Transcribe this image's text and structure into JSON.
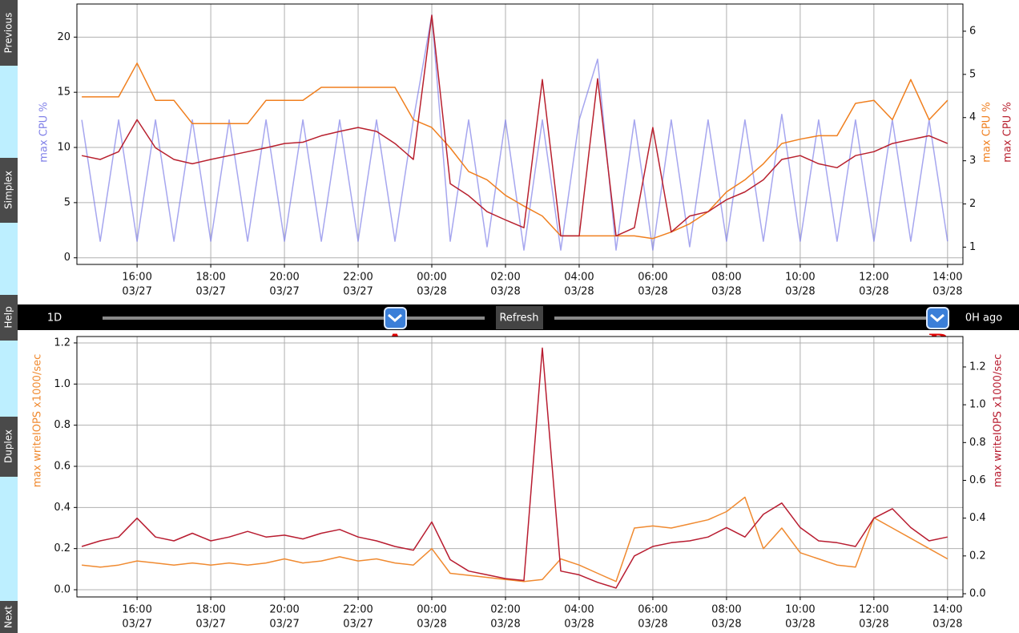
{
  "sidebar": {
    "buttons": [
      "Previous",
      "Simplex",
      "Help",
      "Duplex",
      "Next"
    ]
  },
  "controls": {
    "range": "1D",
    "refresh": "Refresh",
    "offset": "0H ago",
    "markers": [
      "A",
      "B"
    ]
  },
  "chart_data": [
    {
      "type": "line",
      "grid": true,
      "x": [
        "03/27 14:30",
        "03/27 15:00",
        "03/27 15:30",
        "03/27 16:00",
        "03/27 16:30",
        "03/27 17:00",
        "03/27 17:30",
        "03/27 18:00",
        "03/27 18:30",
        "03/27 19:00",
        "03/27 19:30",
        "03/27 20:00",
        "03/27 20:30",
        "03/27 21:00",
        "03/27 21:30",
        "03/27 22:00",
        "03/27 22:30",
        "03/27 23:00",
        "03/27 23:30",
        "03/28 00:00",
        "03/28 00:30",
        "03/28 01:00",
        "03/28 01:30",
        "03/28 02:00",
        "03/28 02:30",
        "03/28 03:00",
        "03/28 03:30",
        "03/28 04:00",
        "03/28 04:30",
        "03/28 05:00",
        "03/28 05:30",
        "03/28 06:00",
        "03/28 06:30",
        "03/28 07:00",
        "03/28 07:30",
        "03/28 08:00",
        "03/28 08:30",
        "03/28 09:00",
        "03/28 09:30",
        "03/28 10:00",
        "03/28 10:30",
        "03/28 11:00",
        "03/28 11:30",
        "03/28 12:00",
        "03/28 12:30",
        "03/28 13:00",
        "03/28 13:30",
        "03/28 14:00"
      ],
      "xlim": [
        "03/27 14:22",
        "03/28 14:25"
      ],
      "xticks": [
        {
          "value": "03/27 16:00",
          "label": [
            "16:00",
            "03/27"
          ]
        },
        {
          "value": "03/27 18:00",
          "label": [
            "18:00",
            "03/27"
          ]
        },
        {
          "value": "03/27 20:00",
          "label": [
            "20:00",
            "03/27"
          ]
        },
        {
          "value": "03/27 22:00",
          "label": [
            "22:00",
            "03/27"
          ]
        },
        {
          "value": "03/28 00:00",
          "label": [
            "00:00",
            "03/28"
          ]
        },
        {
          "value": "03/28 02:00",
          "label": [
            "02:00",
            "03/28"
          ]
        },
        {
          "value": "03/28 04:00",
          "label": [
            "04:00",
            "03/28"
          ]
        },
        {
          "value": "03/28 06:00",
          "label": [
            "06:00",
            "03/28"
          ]
        },
        {
          "value": "03/28 08:00",
          "label": [
            "08:00",
            "03/28"
          ]
        },
        {
          "value": "03/28 10:00",
          "label": [
            "10:00",
            "03/28"
          ]
        },
        {
          "value": "03/28 12:00",
          "label": [
            "12:00",
            "03/28"
          ]
        },
        {
          "value": "03/28 14:00",
          "label": [
            "14:00",
            "03/28"
          ]
        }
      ],
      "ylim": [
        -0.6,
        23
      ],
      "yticks": [
        0,
        5,
        10,
        15,
        20
      ],
      "y2lim": [
        0.6,
        6.63
      ],
      "y2ticks": [
        1,
        2,
        3,
        4,
        5,
        6
      ],
      "series": [
        {
          "name": "max CPU %",
          "color": "#8080e8",
          "axis": "y",
          "values": [
            12.5,
            1.5,
            12.5,
            1.5,
            12.5,
            1.5,
            12.5,
            1.5,
            12.5,
            1.5,
            12.5,
            1.5,
            12.5,
            1.5,
            12.5,
            1.5,
            12.5,
            1.5,
            12.5,
            22,
            1.5,
            12.5,
            1,
            12.5,
            0.7,
            12.5,
            0.7,
            12.5,
            18,
            0.7,
            12.5,
            0.7,
            12.5,
            1,
            12.5,
            1.5,
            12.5,
            1.5,
            13,
            1.5,
            12.5,
            1.5,
            12.5,
            1.5,
            12.5,
            1.5,
            12.5,
            1.5
          ]
        },
        {
          "name": "max CPU %",
          "color": "#f07f1e",
          "axis": "y2",
          "values": [
            4.48,
            4.48,
            4.48,
            5.26,
            4.4,
            4.4,
            3.86,
            3.86,
            3.86,
            3.86,
            4.4,
            4.4,
            4.4,
            4.7,
            4.7,
            4.7,
            4.7,
            4.7,
            3.95,
            3.77,
            3.3,
            2.75,
            2.56,
            2.2,
            1.95,
            1.72,
            1.26,
            1.26,
            1.26,
            1.26,
            1.26,
            1.2,
            1.35,
            1.54,
            1.82,
            2.28,
            2.56,
            2.93,
            3.4,
            3.5,
            3.58,
            3.58,
            4.33,
            4.4,
            3.95,
            4.88,
            3.95,
            4.4
          ]
        },
        {
          "name": "max CPU %",
          "color": "#b8202e",
          "axis": "y2",
          "values": [
            3.12,
            3.03,
            3.21,
            3.95,
            3.3,
            3.03,
            2.93,
            3.03,
            3.12,
            3.21,
            3.3,
            3.4,
            3.43,
            3.58,
            3.68,
            3.77,
            3.68,
            3.4,
            3.03,
            6.37,
            2.47,
            2.19,
            1.82,
            1.63,
            1.45,
            4.88,
            1.26,
            1.26,
            4.9,
            1.26,
            1.45,
            3.77,
            1.35,
            1.72,
            1.82,
            2.1,
            2.28,
            2.56,
            3.03,
            3.12,
            2.93,
            2.84,
            3.12,
            3.21,
            3.4,
            3.49,
            3.58,
            3.4
          ]
        }
      ]
    },
    {
      "type": "line",
      "grid": true,
      "x": [
        "03/27 14:30",
        "03/27 15:00",
        "03/27 15:30",
        "03/27 16:00",
        "03/27 16:30",
        "03/27 17:00",
        "03/27 17:30",
        "03/27 18:00",
        "03/27 18:30",
        "03/27 19:00",
        "03/27 19:30",
        "03/27 20:00",
        "03/27 20:30",
        "03/27 21:00",
        "03/27 21:30",
        "03/27 22:00",
        "03/27 22:30",
        "03/27 23:00",
        "03/27 23:30",
        "03/28 00:00",
        "03/28 00:30",
        "03/28 01:00",
        "03/28 01:30",
        "03/28 02:00",
        "03/28 02:30",
        "03/28 03:00",
        "03/28 03:30",
        "03/28 04:00",
        "03/28 04:30",
        "03/28 05:00",
        "03/28 05:30",
        "03/28 06:00",
        "03/28 06:30",
        "03/28 07:00",
        "03/28 07:30",
        "03/28 08:00",
        "03/28 08:30",
        "03/28 09:00",
        "03/28 09:30",
        "03/28 10:00",
        "03/28 10:30",
        "03/28 11:00",
        "03/28 11:30",
        "03/28 12:00",
        "03/28 12:30",
        "03/28 13:00",
        "03/28 13:30",
        "03/28 14:00"
      ],
      "xlim": [
        "03/27 14:22",
        "03/28 14:25"
      ],
      "xticks": [
        {
          "value": "03/27 16:00",
          "label": [
            "16:00",
            "03/27"
          ]
        },
        {
          "value": "03/27 18:00",
          "label": [
            "18:00",
            "03/27"
          ]
        },
        {
          "value": "03/27 20:00",
          "label": [
            "20:00",
            "03/27"
          ]
        },
        {
          "value": "03/27 22:00",
          "label": [
            "22:00",
            "03/27"
          ]
        },
        {
          "value": "03/28 00:00",
          "label": [
            "00:00",
            "03/28"
          ]
        },
        {
          "value": "03/28 02:00",
          "label": [
            "02:00",
            "03/28"
          ]
        },
        {
          "value": "03/28 04:00",
          "label": [
            "04:00",
            "03/28"
          ]
        },
        {
          "value": "03/28 06:00",
          "label": [
            "06:00",
            "03/28"
          ]
        },
        {
          "value": "03/28 08:00",
          "label": [
            "08:00",
            "03/28"
          ]
        },
        {
          "value": "03/28 10:00",
          "label": [
            "10:00",
            "03/28"
          ]
        },
        {
          "value": "03/28 12:00",
          "label": [
            "12:00",
            "03/28"
          ]
        },
        {
          "value": "03/28 14:00",
          "label": [
            "14:00",
            "03/28"
          ]
        }
      ],
      "ylim": [
        -0.035,
        1.231
      ],
      "yticks": [
        {
          "value": 0,
          "label": "0.0"
        },
        0.2,
        0.4,
        0.6,
        0.8,
        {
          "value": 1,
          "label": "1.0"
        },
        1.2
      ],
      "y2lim": [
        -0.017,
        1.361
      ],
      "y2ticks": [
        {
          "value": 0,
          "label": "0.0"
        },
        0.2,
        0.4,
        0.6,
        0.8,
        {
          "value": 1,
          "label": "1.0"
        },
        1.2
      ],
      "series": [
        {
          "name": "max writeIOPS x1000/sec",
          "color": "#f08a30",
          "axis": "y",
          "values": [
            0.12,
            0.11,
            0.12,
            0.14,
            0.13,
            0.12,
            0.13,
            0.12,
            0.13,
            0.12,
            0.13,
            0.15,
            0.13,
            0.14,
            0.16,
            0.14,
            0.15,
            0.13,
            0.12,
            0.2,
            0.08,
            0.07,
            0.06,
            0.05,
            0.04,
            0.05,
            0.15,
            0.12,
            0.08,
            0.04,
            0.3,
            0.31,
            0.3,
            0.32,
            0.34,
            0.38,
            0.45,
            0.2,
            0.3,
            0.18,
            0.15,
            0.12,
            0.11,
            0.35,
            0.3,
            0.25,
            0.2,
            0.15
          ]
        },
        {
          "name": "max writeIOPS x1000/sec",
          "color": "#b81c30",
          "axis": "y2",
          "values": [
            0.25,
            0.28,
            0.3,
            0.4,
            0.3,
            0.28,
            0.32,
            0.28,
            0.3,
            0.33,
            0.3,
            0.31,
            0.29,
            0.32,
            0.34,
            0.3,
            0.28,
            0.25,
            0.23,
            0.38,
            0.18,
            0.12,
            0.1,
            0.08,
            0.07,
            1.3,
            0.12,
            0.1,
            0.06,
            0.03,
            0.2,
            0.25,
            0.27,
            0.28,
            0.3,
            0.35,
            0.3,
            0.42,
            0.48,
            0.35,
            0.28,
            0.27,
            0.25,
            0.4,
            0.45,
            0.35,
            0.28,
            0.3
          ]
        }
      ]
    }
  ]
}
